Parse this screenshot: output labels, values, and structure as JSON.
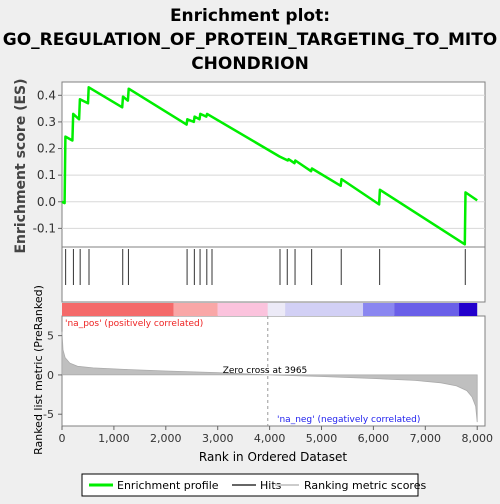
{
  "chart_data": {
    "type": "line",
    "title_lines": [
      "Enrichment plot:",
      "GO_REGULATION_OF_PROTEIN_TARGETING_TO_MITO",
      "CHONDRION"
    ],
    "enrichment": {
      "ylabel": "Enrichment score (ES)",
      "ylim": [
        -0.17,
        0.45
      ],
      "yticks": [
        -0.1,
        0.0,
        0.1,
        0.2,
        0.3,
        0.4
      ],
      "ytick_labels": [
        "-0.1",
        "0.0",
        "0.1",
        "0.2",
        "0.3",
        "0.4"
      ],
      "color": "#00ee00",
      "series_name": "Enrichment profile",
      "points": [
        [
          0,
          0.0
        ],
        [
          50,
          -0.005
        ],
        [
          65,
          0.245
        ],
        [
          200,
          0.23
        ],
        [
          215,
          0.33
        ],
        [
          330,
          0.31
        ],
        [
          345,
          0.385
        ],
        [
          500,
          0.37
        ],
        [
          515,
          0.43
        ],
        [
          1160,
          0.355
        ],
        [
          1175,
          0.395
        ],
        [
          1270,
          0.38
        ],
        [
          1285,
          0.425
        ],
        [
          2400,
          0.29
        ],
        [
          2415,
          0.31
        ],
        [
          2540,
          0.3
        ],
        [
          2555,
          0.32
        ],
        [
          2650,
          0.31
        ],
        [
          2665,
          0.33
        ],
        [
          2780,
          0.32
        ],
        [
          2795,
          0.33
        ],
        [
          4190,
          0.17
        ],
        [
          4350,
          0.155
        ],
        [
          4365,
          0.16
        ],
        [
          4480,
          0.145
        ],
        [
          4495,
          0.155
        ],
        [
          4800,
          0.115
        ],
        [
          4815,
          0.125
        ],
        [
          5370,
          0.06
        ],
        [
          5385,
          0.085
        ],
        [
          6110,
          -0.01
        ],
        [
          6125,
          0.045
        ],
        [
          7760,
          -0.16
        ],
        [
          7775,
          0.035
        ],
        [
          8000,
          0.005
        ]
      ]
    },
    "hits": [
      70,
      220,
      350,
      520,
      1170,
      1280,
      2410,
      2550,
      2660,
      2790,
      2890,
      4200,
      4340,
      4490,
      4810,
      5380,
      6120,
      7770
    ],
    "hits_label": "Hits",
    "color_bar": {
      "segments": [
        {
          "from": 0,
          "to": 2150,
          "color": "#f46a6a"
        },
        {
          "from": 2150,
          "to": 3000,
          "color": "#f9a7a7"
        },
        {
          "from": 3000,
          "to": 3965,
          "color": "#fbc3dd"
        },
        {
          "from": 3965,
          "to": 4300,
          "color": "#eceaf7"
        },
        {
          "from": 4300,
          "to": 5800,
          "color": "#d2d0f5"
        },
        {
          "from": 5800,
          "to": 6400,
          "color": "#8a86f0"
        },
        {
          "from": 6400,
          "to": 7650,
          "color": "#6a5fe8"
        },
        {
          "from": 7650,
          "to": 8000,
          "color": "#2200cc"
        }
      ]
    },
    "ranked": {
      "ylabel": "Ranked list metric (PreRanked)",
      "xlabel": "Rank in Ordered Dataset",
      "xlim": [
        0,
        8150
      ],
      "ylim": [
        -6.5,
        7.5
      ],
      "xticks": [
        0,
        1000,
        2000,
        3000,
        4000,
        5000,
        6000,
        7000,
        8000
      ],
      "xtick_labels": [
        "0",
        "1,000",
        "2,000",
        "3,000",
        "4,000",
        "5,000",
        "6,000",
        "7,000",
        "8,000"
      ],
      "yticks": [
        -5,
        0,
        5
      ],
      "ytick_labels": [
        "-5",
        "0",
        "5"
      ],
      "color": "#bfbfbf",
      "points": [
        [
          0,
          5.5
        ],
        [
          20,
          3.2
        ],
        [
          60,
          2.2
        ],
        [
          150,
          1.5
        ],
        [
          300,
          1.1
        ],
        [
          600,
          0.9
        ],
        [
          1200,
          0.7
        ],
        [
          2000,
          0.5
        ],
        [
          3000,
          0.3
        ],
        [
          3965,
          0.0
        ],
        [
          5000,
          -0.2
        ],
        [
          6000,
          -0.45
        ],
        [
          6800,
          -0.7
        ],
        [
          7300,
          -1.0
        ],
        [
          7600,
          -1.4
        ],
        [
          7800,
          -2.0
        ],
        [
          7900,
          -2.8
        ],
        [
          7970,
          -4.0
        ],
        [
          8000,
          -6.0
        ]
      ],
      "zero_cross_label": "Zero cross at 3965",
      "zero_cross": 3965,
      "pos_label": "'na_pos' (positively correlated)",
      "neg_label": "'na_neg' (negatively correlated)"
    },
    "legend": {
      "items": [
        {
          "label": "Enrichment profile",
          "color": "#00ee00"
        },
        {
          "label": "Hits",
          "color": "#666666"
        },
        {
          "label": "Ranking metric scores",
          "color": "#cccccc"
        }
      ]
    }
  }
}
